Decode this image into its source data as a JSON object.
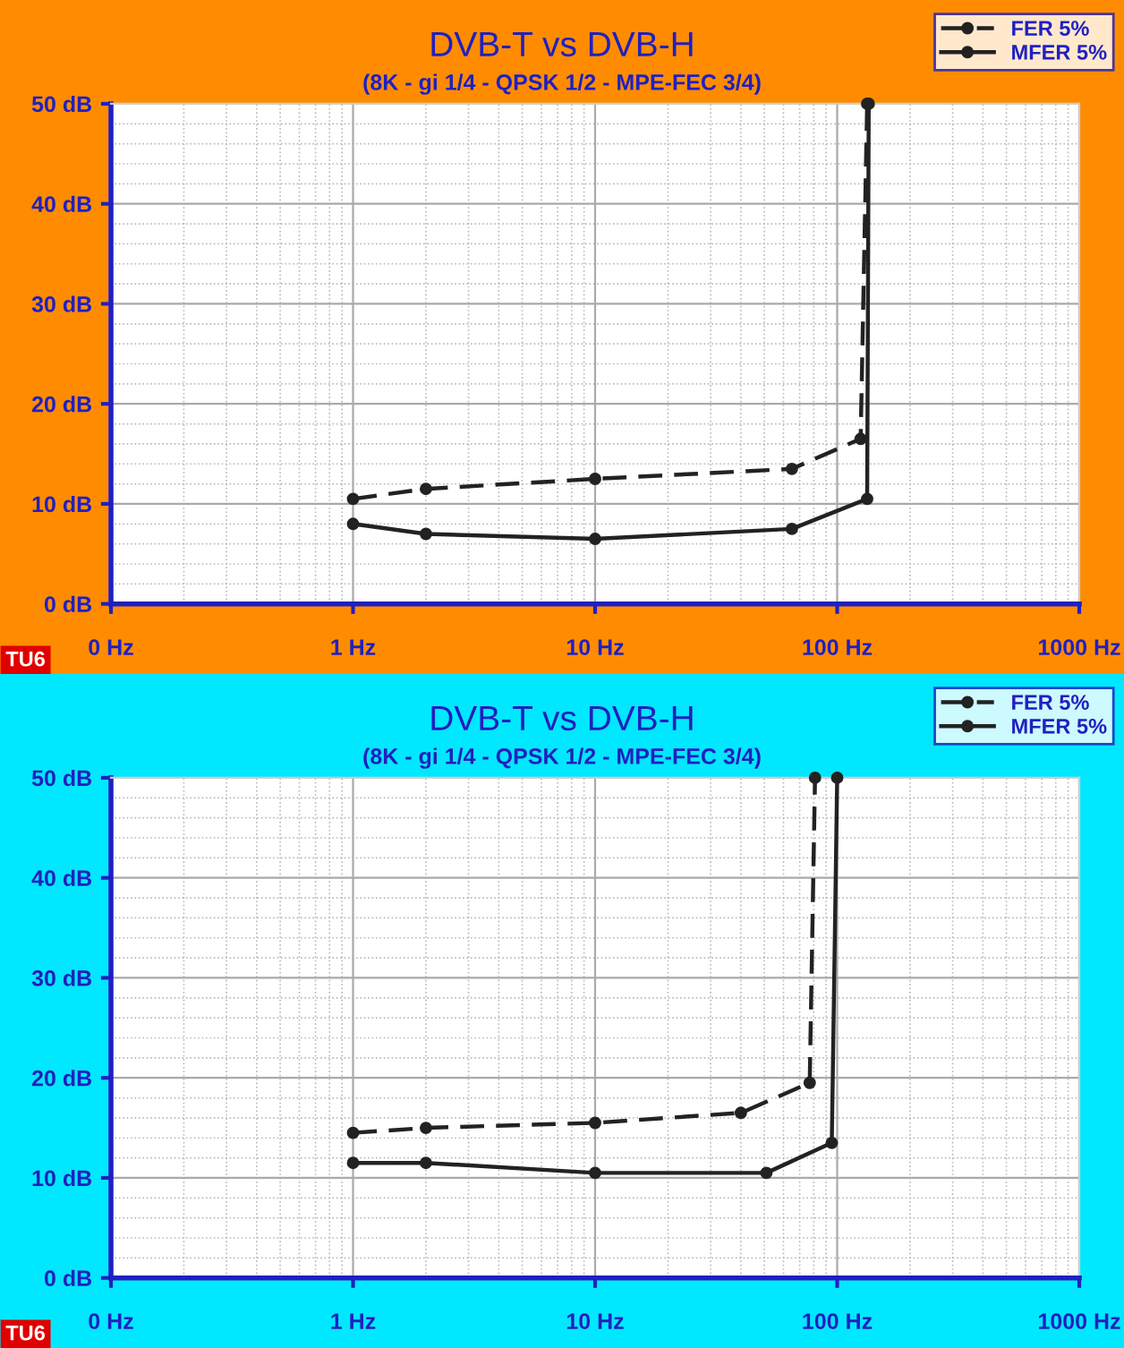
{
  "chart_data": [
    {
      "type": "line",
      "title": "DVB-T vs DVB-H",
      "subtitle": "(8K - gi 1/4 - QPSK 1/2 - MPE-FEC 3/4)",
      "series": [
        {
          "name": "FER 5%",
          "color": "#222222",
          "line_style": "dashed",
          "x": [
            1,
            2,
            10,
            65,
            125,
            133
          ],
          "values": [
            10.5,
            11.5,
            12.5,
            13.5,
            16.5,
            50
          ]
        },
        {
          "name": "MFER 5%",
          "color": "#222222",
          "line_style": "solid",
          "x": [
            1,
            2,
            10,
            65,
            133,
            135
          ],
          "values": [
            8,
            7,
            6.5,
            7.5,
            10.5,
            50
          ]
        }
      ],
      "log": "x",
      "xlim": [
        0.1,
        1000
      ],
      "xticks": [
        {
          "value": 0.1,
          "label": "0 Hz"
        },
        {
          "value": 1,
          "label": "1 Hz"
        },
        {
          "value": 10,
          "label": "10 Hz"
        },
        {
          "value": 100,
          "label": "100 Hz"
        },
        {
          "value": 1000,
          "label": "1000 Hz"
        }
      ],
      "ylim": [
        0,
        50
      ],
      "yticks": [
        {
          "value": 0,
          "label": "0 dB"
        },
        {
          "value": 10,
          "label": "10 dB"
        },
        {
          "value": 20,
          "label": "20 dB"
        },
        {
          "value": 30,
          "label": "30 dB"
        },
        {
          "value": 40,
          "label": "40 dB"
        },
        {
          "value": 50,
          "label": "50 dB"
        }
      ],
      "grid": true,
      "marker": "circle",
      "legend": "top right",
      "annotations": [
        "TU6"
      ]
    },
    {
      "type": "line",
      "title": "DVB-T vs DVB-H",
      "subtitle": "(8K - gi 1/4 - QPSK 1/2 - MPE-FEC 3/4)",
      "series": [
        {
          "name": "FER 5%",
          "color": "#222222",
          "line_style": "dashed",
          "x": [
            1,
            2,
            10,
            40,
            77,
            81
          ],
          "values": [
            14.5,
            15,
            15.5,
            16.5,
            19.5,
            50
          ]
        },
        {
          "name": "MFER 5%",
          "color": "#222222",
          "line_style": "solid",
          "x": [
            1,
            2,
            10,
            51,
            95,
            100
          ],
          "values": [
            11.5,
            11.5,
            10.5,
            10.5,
            13.5,
            50
          ]
        }
      ],
      "log": "x",
      "xlim": [
        0.1,
        1000
      ],
      "xticks": [
        {
          "value": 0.1,
          "label": "0 Hz"
        },
        {
          "value": 1,
          "label": "1 Hz"
        },
        {
          "value": 10,
          "label": "10 Hz"
        },
        {
          "value": 100,
          "label": "100 Hz"
        },
        {
          "value": 1000,
          "label": "1000 Hz"
        }
      ],
      "ylim": [
        0,
        50
      ],
      "yticks": [
        {
          "value": 0,
          "label": "0 dB"
        },
        {
          "value": 10,
          "label": "10 dB"
        },
        {
          "value": 20,
          "label": "20 dB"
        },
        {
          "value": 30,
          "label": "30 dB"
        },
        {
          "value": 40,
          "label": "40 dB"
        },
        {
          "value": 50,
          "label": "50 dB"
        }
      ],
      "grid": true,
      "marker": "circle",
      "legend": "top right",
      "annotations": [
        "TU6"
      ]
    }
  ]
}
